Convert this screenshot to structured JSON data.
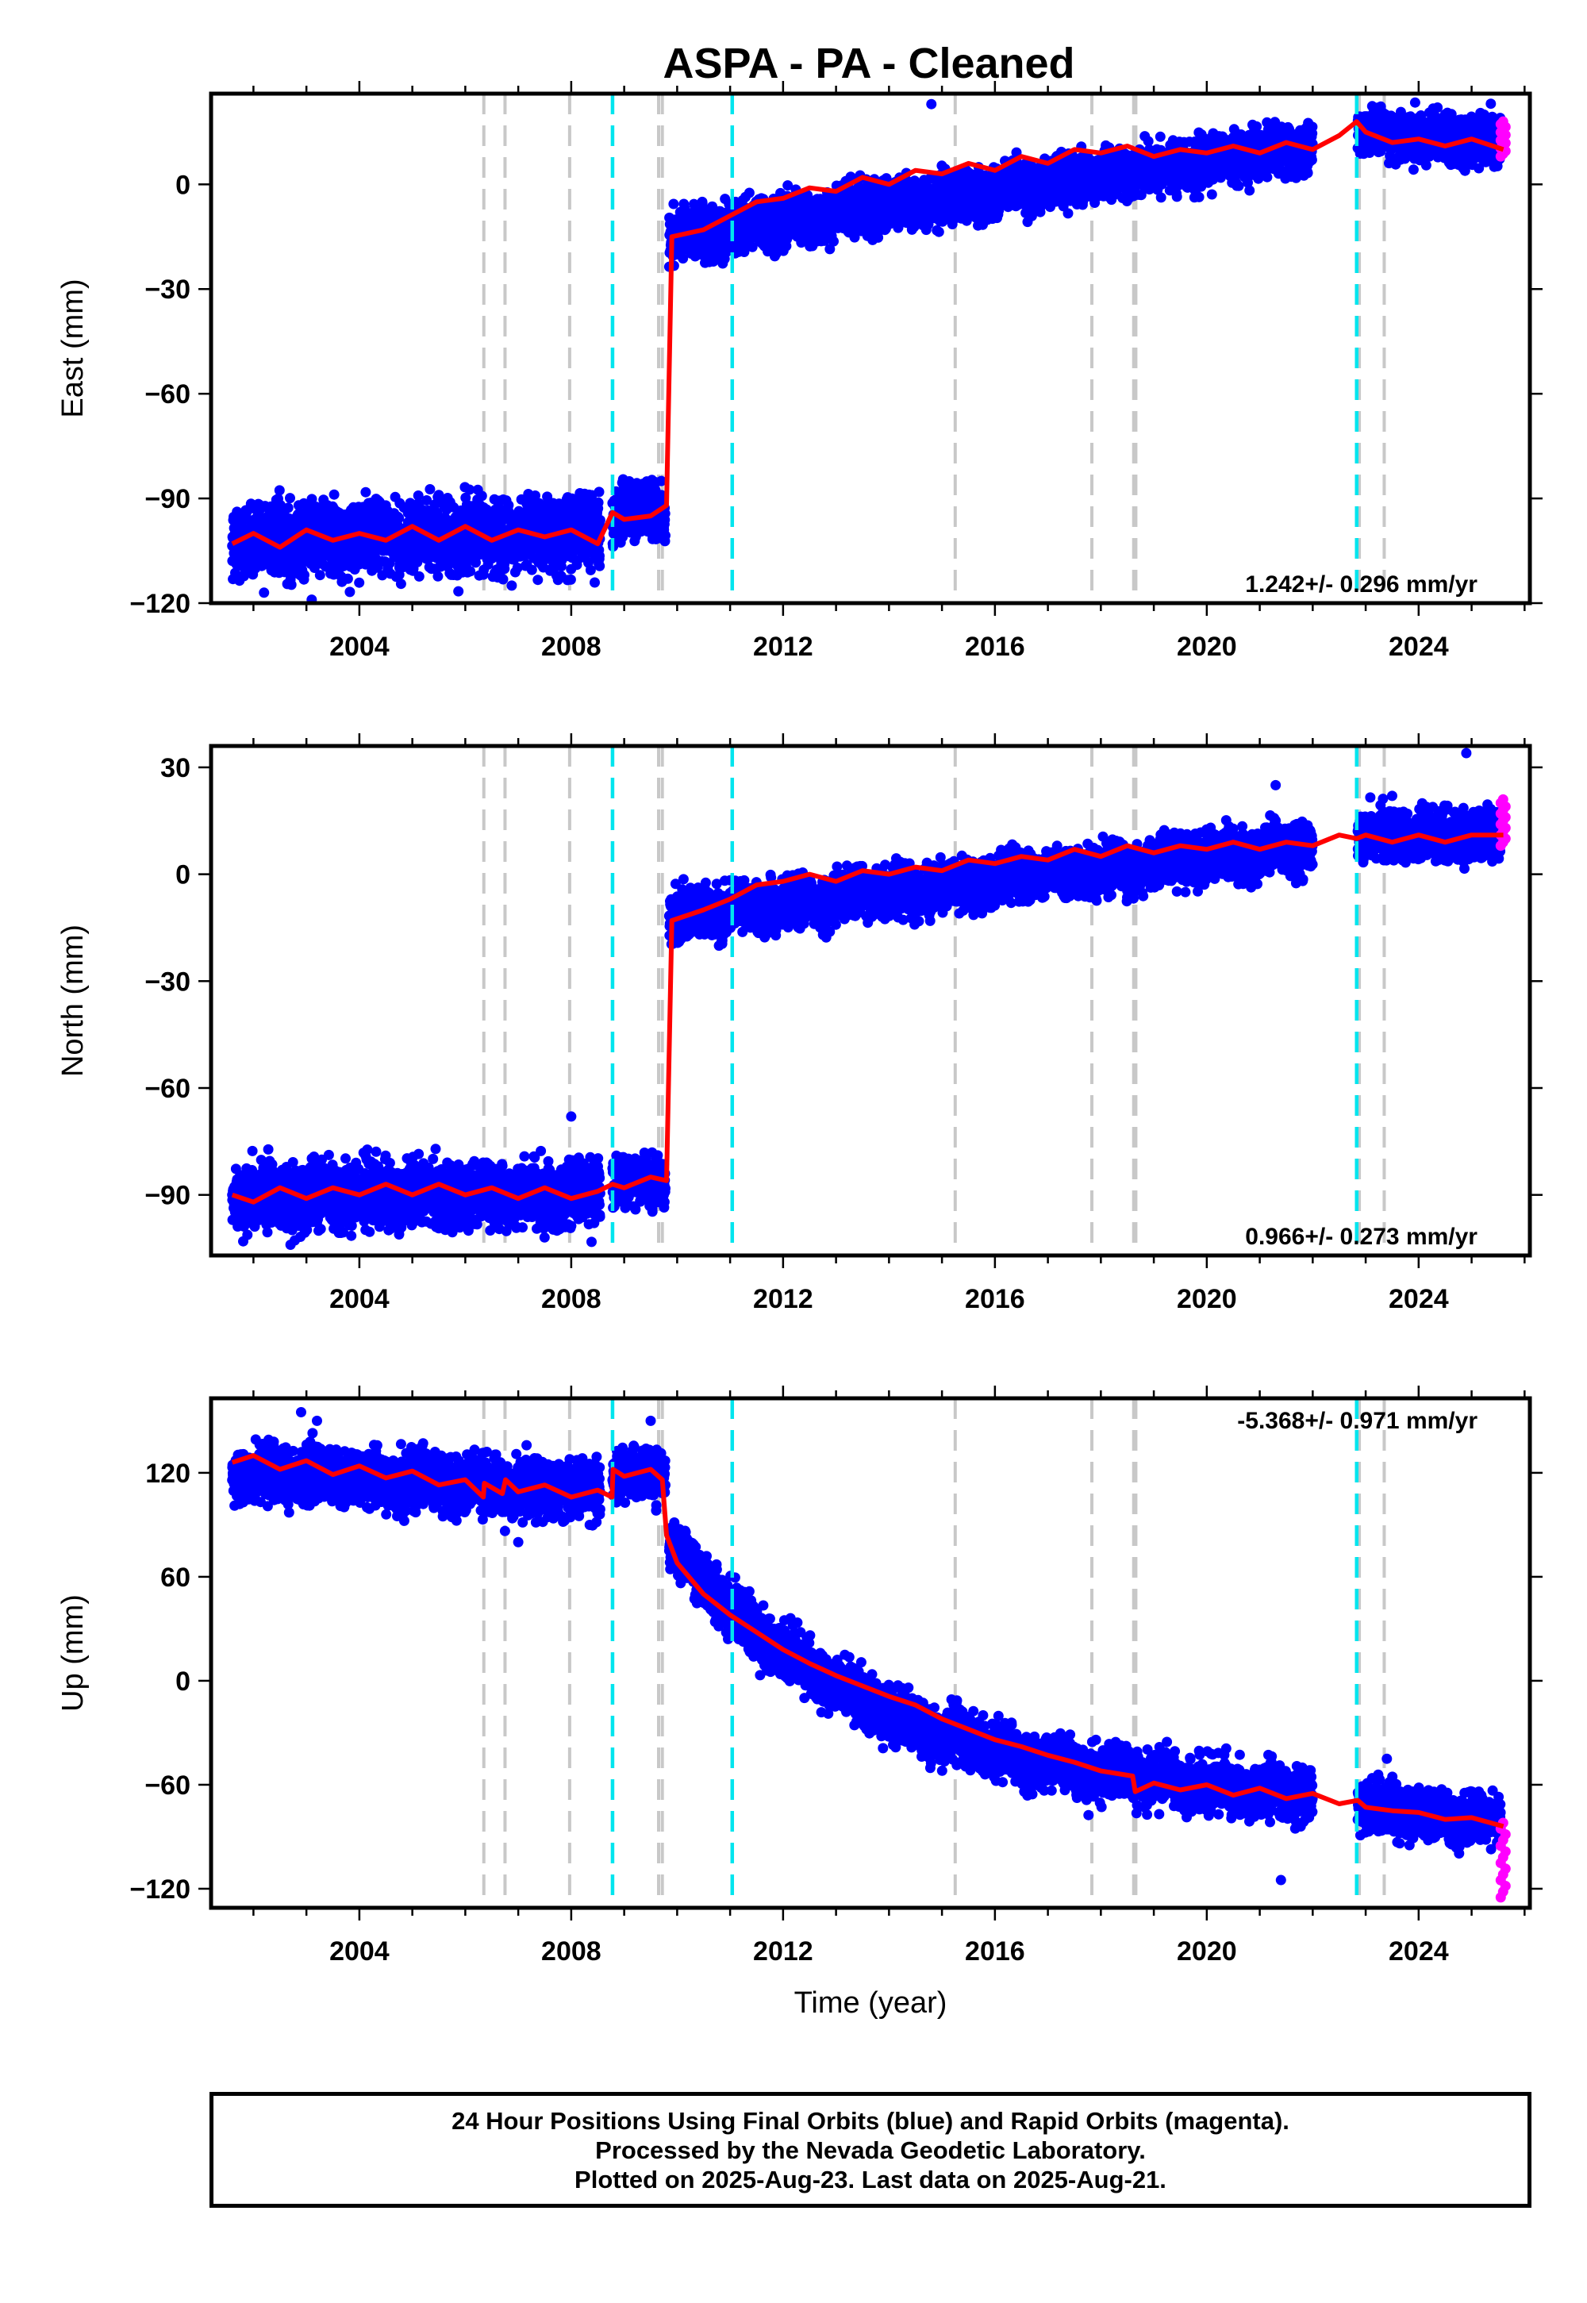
{
  "title": "ASPA  - PA - Cleaned",
  "colors": {
    "final": "#0000ff",
    "rapid": "#ff00ff",
    "model": "#ff0000",
    "equipment_change": "#c8c8c8",
    "earthquake": "#00e5ee"
  },
  "footer": {
    "line1": "24 Hour Positions Using Final Orbits (blue) and Rapid Orbits (magenta).",
    "line2": "Processed by the Nevada Geodetic Laboratory.",
    "line3": "Plotted on 2025-Aug-23. Last data on 2025-Aug-21."
  },
  "chart_data": [
    {
      "type": "scatter",
      "component": "east",
      "ylabel": "East (mm)",
      "xlabel": "",
      "xlim": [
        2001.2,
        2026.1
      ],
      "ylim": [
        -120,
        26
      ],
      "xticks": [
        2004,
        2008,
        2012,
        2016,
        2020,
        2024
      ],
      "yticks": [
        -120,
        -90,
        -60,
        -30,
        0
      ],
      "rate_label": "1.242+/- 0.296 mm/yr",
      "grey_dashed_lines_x": [
        2006.35,
        2006.75,
        2007.97,
        2009.65,
        2009.72,
        2015.25,
        2017.83,
        2018.62,
        2018.66,
        2022.88,
        2023.35
      ],
      "cyan_dashed_lines_x": [
        2008.78,
        2011.04,
        2022.83
      ],
      "model_curve": {
        "name": "model",
        "x": [
          2001.6,
          2002.0,
          2002.5,
          2003.0,
          2003.5,
          2004.0,
          2004.5,
          2005.0,
          2005.5,
          2006.0,
          2006.5,
          2007.0,
          2007.5,
          2008.0,
          2008.5,
          2008.78,
          2009.0,
          2009.5,
          2009.8,
          2009.9,
          2010.5,
          2011.0,
          2011.5,
          2012.0,
          2012.5,
          2013.0,
          2013.5,
          2014.0,
          2014.5,
          2015.0,
          2015.5,
          2016.0,
          2016.5,
          2017.0,
          2017.5,
          2018.0,
          2018.5,
          2019.0,
          2019.5,
          2020.0,
          2020.5,
          2021.0,
          2021.5,
          2022.0,
          2022.5,
          2022.83,
          2023.0,
          2023.5,
          2024.0,
          2024.5,
          2025.0,
          2025.6
        ],
        "y": [
          -103,
          -100,
          -104,
          -99,
          -102,
          -100,
          -102,
          -98,
          -102,
          -98,
          -102,
          -99,
          -101,
          -99,
          -103,
          -94,
          -96,
          -95,
          -92,
          -15,
          -13,
          -9,
          -5,
          -4,
          -1,
          -2,
          2,
          0,
          4,
          3,
          6,
          4,
          8,
          6,
          10,
          9,
          11,
          8,
          10,
          9,
          11,
          9,
          12,
          10,
          14,
          18,
          15,
          12,
          13,
          11,
          13,
          10
        ]
      },
      "points_final": {
        "name": "final orbits",
        "segments": [
          {
            "x_start": 2001.6,
            "x_end": 2008.55,
            "trend_start": -102,
            "trend_end": -100,
            "scatter": 5
          },
          {
            "x_start": 2008.78,
            "x_end": 2009.78,
            "trend_start": -94,
            "trend_end": -94,
            "scatter": 4
          },
          {
            "x_start": 2009.85,
            "x_end": 2022.0,
            "trend_start": -15,
            "trend_end": 11,
            "scatter": 3.5
          },
          {
            "x_start": 2022.85,
            "x_end": 2025.55,
            "trend_start": 15,
            "trend_end": 12,
            "scatter": 3.5
          }
        ],
        "outliers": [
          [
            2002.2,
            -117
          ],
          [
            2003.1,
            -119
          ],
          [
            2014.8,
            23
          ],
          [
            2009.7,
            -85
          ],
          [
            2004.5,
            -92
          ]
        ]
      },
      "points_rapid": {
        "name": "rapid orbits",
        "x_start": 2025.55,
        "x_end": 2025.64,
        "y_min": 8,
        "y_max": 18
      }
    },
    {
      "type": "scatter",
      "component": "north",
      "ylabel": "North (mm)",
      "xlabel": "",
      "xlim": [
        2001.2,
        2026.1
      ],
      "ylim": [
        -107,
        36
      ],
      "xticks": [
        2004,
        2008,
        2012,
        2016,
        2020,
        2024
      ],
      "yticks": [
        -90,
        -60,
        -30,
        0,
        30
      ],
      "rate_label": "0.966+/- 0.273 mm/yr",
      "grey_dashed_lines_x": [
        2006.35,
        2006.75,
        2007.97,
        2009.65,
        2009.72,
        2015.25,
        2017.83,
        2018.62,
        2018.66,
        2022.88,
        2023.35
      ],
      "cyan_dashed_lines_x": [
        2008.78,
        2011.04,
        2022.83
      ],
      "model_curve": {
        "name": "model",
        "x": [
          2001.6,
          2002.0,
          2002.5,
          2003.0,
          2003.5,
          2004.0,
          2004.5,
          2005.0,
          2005.5,
          2006.0,
          2006.5,
          2007.0,
          2007.5,
          2008.0,
          2008.5,
          2008.78,
          2009.0,
          2009.5,
          2009.8,
          2009.9,
          2010.5,
          2011.0,
          2011.5,
          2012.0,
          2012.5,
          2013.0,
          2013.5,
          2014.0,
          2014.5,
          2015.0,
          2015.5,
          2016.0,
          2016.5,
          2017.0,
          2017.5,
          2018.0,
          2018.5,
          2019.0,
          2019.5,
          2020.0,
          2020.5,
          2021.0,
          2021.5,
          2022.0,
          2022.5,
          2022.83,
          2023.0,
          2023.5,
          2024.0,
          2024.5,
          2025.0,
          2025.6
        ],
        "y": [
          -90,
          -92,
          -88,
          -91,
          -88,
          -90,
          -87,
          -90,
          -87,
          -90,
          -88,
          -91,
          -88,
          -91,
          -89,
          -87,
          -88,
          -85,
          -86,
          -13,
          -10,
          -7,
          -3,
          -2,
          0,
          -2,
          1,
          0,
          2,
          1,
          4,
          3,
          5,
          4,
          7,
          5,
          8,
          6,
          8,
          7,
          9,
          7,
          9,
          8,
          11,
          10,
          11,
          9,
          11,
          9,
          11,
          11
        ]
      },
      "points_final": {
        "name": "final orbits",
        "segments": [
          {
            "x_start": 2001.6,
            "x_end": 2008.55,
            "trend_start": -90,
            "trend_end": -90,
            "scatter": 4.5
          },
          {
            "x_start": 2008.78,
            "x_end": 2009.78,
            "trend_start": -86,
            "trend_end": -86,
            "scatter": 3.5
          },
          {
            "x_start": 2009.85,
            "x_end": 2022.0,
            "trend_start": -12,
            "trend_end": 8,
            "scatter": 3.5
          },
          {
            "x_start": 2022.85,
            "x_end": 2025.55,
            "trend_start": 11,
            "trend_end": 11,
            "scatter": 3.5
          }
        ],
        "outliers": [
          [
            2008.0,
            -68
          ],
          [
            2002.7,
            -104
          ],
          [
            2024.9,
            34
          ],
          [
            2021.3,
            25
          ],
          [
            2023.5,
            22
          ]
        ]
      },
      "points_rapid": {
        "name": "rapid orbits",
        "x_start": 2025.55,
        "x_end": 2025.64,
        "y_min": 8,
        "y_max": 21
      }
    },
    {
      "type": "scatter",
      "component": "up",
      "ylabel": "Up (mm)",
      "xlabel": "Time (year)",
      "xlim": [
        2001.2,
        2026.1
      ],
      "ylim": [
        -131,
        163
      ],
      "xticks": [
        2004,
        2008,
        2012,
        2016,
        2020,
        2024
      ],
      "yticks": [
        -120,
        -60,
        0,
        60,
        120
      ],
      "rate_label": "-5.368+/- 0.971 mm/yr",
      "grey_dashed_lines_x": [
        2006.35,
        2006.75,
        2007.97,
        2009.65,
        2009.72,
        2015.25,
        2017.83,
        2018.62,
        2018.66,
        2022.88,
        2023.35
      ],
      "cyan_dashed_lines_x": [
        2008.78,
        2011.04,
        2022.83
      ],
      "model_curve": {
        "name": "model",
        "x": [
          2001.6,
          2002.0,
          2002.5,
          2003.0,
          2003.5,
          2004.0,
          2004.5,
          2005.0,
          2005.5,
          2006.0,
          2006.34,
          2006.36,
          2006.7,
          2006.76,
          2007.0,
          2007.5,
          2008.0,
          2008.5,
          2008.77,
          2008.79,
          2009.0,
          2009.5,
          2009.72,
          2009.8,
          2010.0,
          2010.5,
          2011.0,
          2011.5,
          2012.0,
          2012.5,
          2013.0,
          2013.5,
          2014.0,
          2014.5,
          2015.0,
          2015.5,
          2016.0,
          2016.5,
          2017.0,
          2017.5,
          2018.0,
          2018.6,
          2018.65,
          2019.0,
          2019.5,
          2020.0,
          2020.5,
          2021.0,
          2021.5,
          2022.0,
          2022.5,
          2022.85,
          2023.0,
          2023.5,
          2024.0,
          2024.5,
          2025.0,
          2025.6
        ],
        "y": [
          126,
          130,
          122,
          127,
          119,
          124,
          117,
          121,
          113,
          116,
          106,
          114,
          108,
          116,
          109,
          113,
          106,
          110,
          106,
          122,
          118,
          122,
          116,
          84,
          68,
          50,
          38,
          28,
          18,
          10,
          3,
          -3,
          -9,
          -14,
          -22,
          -28,
          -34,
          -38,
          -43,
          -47,
          -52,
          -55,
          -64,
          -59,
          -63,
          -60,
          -66,
          -62,
          -68,
          -65,
          -71,
          -69,
          -73,
          -75,
          -76,
          -80,
          -79,
          -84
        ]
      },
      "points_final": {
        "name": "final orbits",
        "segments": [
          {
            "x_start": 2001.6,
            "x_end": 2008.55,
            "trend_start": 120,
            "trend_end": 110,
            "scatter": 8
          },
          {
            "x_start": 2008.78,
            "x_end": 2009.78,
            "trend_start": 120,
            "trend_end": 118,
            "scatter": 7
          },
          {
            "x_start": 2009.85,
            "x_end": 2022.0,
            "trend_start": 80,
            "trend_end": -66,
            "scatter": 8,
            "decay": true
          },
          {
            "x_start": 2022.85,
            "x_end": 2025.55,
            "trend_start": -72,
            "trend_end": -82,
            "scatter": 7
          }
        ],
        "outliers": [
          [
            2002.9,
            155
          ],
          [
            2003.2,
            150
          ],
          [
            2007.0,
            80
          ],
          [
            2021.4,
            -115
          ],
          [
            2023.4,
            -45
          ],
          [
            2009.5,
            150
          ]
        ]
      },
      "points_rapid": {
        "name": "rapid orbits",
        "x_start": 2025.55,
        "x_end": 2025.64,
        "y_min": -125,
        "y_max": -82
      }
    }
  ]
}
